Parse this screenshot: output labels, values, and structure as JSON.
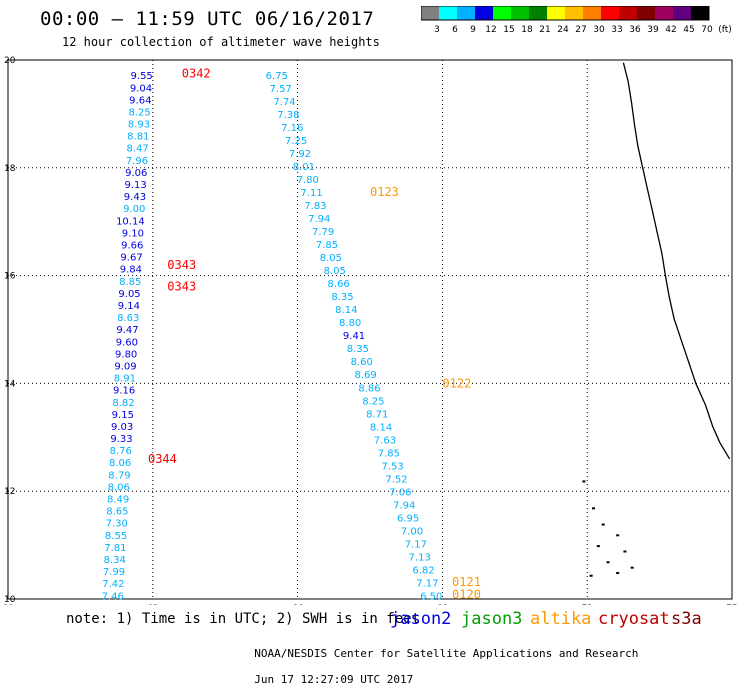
{
  "header": {
    "title": "00:00 – 11:59 UTC 06/16/2017",
    "subtitle": "12 hour collection of altimeter wave heights"
  },
  "colorbar": {
    "colors": [
      "#808080",
      "#00ffff",
      "#00b0ff",
      "#0000e0",
      "#00ff00",
      "#00c000",
      "#008000",
      "#ffff00",
      "#ffc000",
      "#ff8000",
      "#ff0000",
      "#c00000",
      "#800000",
      "#a00060",
      "#600080",
      "#000000"
    ],
    "labels": [
      "3",
      "6",
      "9",
      "12",
      "15",
      "18",
      "21",
      "24",
      "27",
      "30",
      "33",
      "36",
      "39",
      "42",
      "45",
      "70",
      "(ft)"
    ]
  },
  "map": {
    "lon_ticks": [
      "60",
      "63",
      "66",
      "69",
      "72",
      "75"
    ],
    "lat_ticks": [
      "10",
      "12",
      "14",
      "16",
      "18",
      "20"
    ],
    "col_a": {
      "lon": 63.0,
      "values": [
        "9.55",
        "9.04",
        "9.64",
        "8.25",
        "8.93",
        "8.81",
        "8.47",
        "7.96",
        "9.06",
        "9.13",
        "9.43",
        "9.00",
        "10.14",
        "9.10",
        "9.66",
        "9.67",
        "9.84",
        "8.85",
        "9.05",
        "9.14",
        "8.63",
        "9.47",
        "9.60",
        "9.80",
        "9.09",
        "8.91",
        "9.16",
        "8.82",
        "9.15",
        "9.03",
        "9.33",
        "8.76",
        "8.06",
        "8.79",
        "8.06",
        "8.49",
        "8.65",
        "7.30",
        "8.55",
        "7.81",
        "8.34",
        "7.99",
        "7.42",
        "7.46"
      ],
      "colors": [
        "#0000e0",
        "#0000e0",
        "#0000e0",
        "#00b0ff",
        "#00b0ff",
        "#00b0ff",
        "#00b0ff",
        "#00b0ff",
        "#0000e0",
        "#0000e0",
        "#0000e0",
        "#00b0ff",
        "#0000e0",
        "#0000e0",
        "#0000e0",
        "#0000e0",
        "#0000e0",
        "#00b0ff",
        "#0000e0",
        "#0000e0",
        "#00b0ff",
        "#0000e0",
        "#0000e0",
        "#0000e0",
        "#0000e0",
        "#00b0ff",
        "#0000e0",
        "#00b0ff",
        "#0000e0",
        "#0000e0",
        "#0000e0",
        "#00b0ff",
        "#00b0ff",
        "#00b0ff",
        "#00b0ff",
        "#00b0ff",
        "#00b0ff",
        "#00b0ff",
        "#00b0ff",
        "#00b0ff",
        "#00b0ff",
        "#00b0ff",
        "#00b0ff",
        "#00b0ff"
      ]
    },
    "col_b": {
      "lon": 66.0,
      "values": [
        "6.75",
        "7.57",
        "7.74",
        "7.38",
        "7.16",
        "7.25",
        "7.92",
        "8.01",
        "7.80",
        "7.11",
        "7.83",
        "7.94",
        "7.79",
        "7.85",
        "8.05",
        "8.05",
        "8.66",
        "8.35",
        "8.14",
        "8.80",
        "9.41",
        "8.35",
        "8.60",
        "8.69",
        "8.86",
        "8.25",
        "8.71",
        "8.14",
        "7.63",
        "7.85",
        "7.53",
        "7.52",
        "7.06",
        "7.94",
        "6.95",
        "7.00",
        "7.17",
        "7.13",
        "6.82",
        "7.17",
        "6.50"
      ],
      "colors": [
        "#00b0ff",
        "#00b0ff",
        "#00b0ff",
        "#00b0ff",
        "#00b0ff",
        "#00b0ff",
        "#00b0ff",
        "#00b0ff",
        "#00b0ff",
        "#00b0ff",
        "#00b0ff",
        "#00b0ff",
        "#00b0ff",
        "#00b0ff",
        "#00b0ff",
        "#00b0ff",
        "#00b0ff",
        "#00b0ff",
        "#00b0ff",
        "#00b0ff",
        "#0000e0",
        "#00b0ff",
        "#00b0ff",
        "#00b0ff",
        "#00b0ff",
        "#00b0ff",
        "#00b0ff",
        "#00b0ff",
        "#00b0ff",
        "#00b0ff",
        "#00b0ff",
        "#00b0ff",
        "#00b0ff",
        "#00b0ff",
        "#00b0ff",
        "#00b0ff",
        "#00b0ff",
        "#00b0ff",
        "#00b0ff",
        "#00b0ff",
        "#00b0ff"
      ]
    },
    "time_tags": [
      {
        "text": "0342",
        "color": "#ff0000",
        "lon": 63.6,
        "lat": 19.75
      },
      {
        "text": "0343",
        "color": "#ff0000",
        "lon": 63.3,
        "lat": 16.2
      },
      {
        "text": "0343",
        "color": "#ff0000",
        "lon": 63.3,
        "lat": 15.8
      },
      {
        "text": "0344",
        "color": "#ff0000",
        "lon": 62.9,
        "lat": 12.6
      },
      {
        "text": "0123",
        "color": "#ff9900",
        "lon": 67.5,
        "lat": 17.55
      },
      {
        "text": "0122",
        "color": "#ff9900",
        "lon": 69.0,
        "lat": 14.0
      },
      {
        "text": "0121",
        "color": "#ff9900",
        "lon": 69.2,
        "lat": 10.32
      },
      {
        "text": "0120",
        "color": "#ff9900",
        "lon": 69.2,
        "lat": 10.08
      }
    ]
  },
  "footer": {
    "note": "note: 1) Time is in UTC; 2) SWH is in feet",
    "legend": [
      {
        "name": "jason2",
        "color": "#0000e0"
      },
      {
        "name": "jason3",
        "color": "#00a000"
      },
      {
        "name": "altika",
        "color": "#ff9900"
      },
      {
        "name": "cryosat",
        "color": "#c00000"
      },
      {
        "name": "s3a",
        "color": "#800000"
      }
    ],
    "credit": "NOAA/NESDIS Center for Satellite Applications and Research",
    "timestamp": "Jun 17 12:27:09 UTC 2017"
  }
}
